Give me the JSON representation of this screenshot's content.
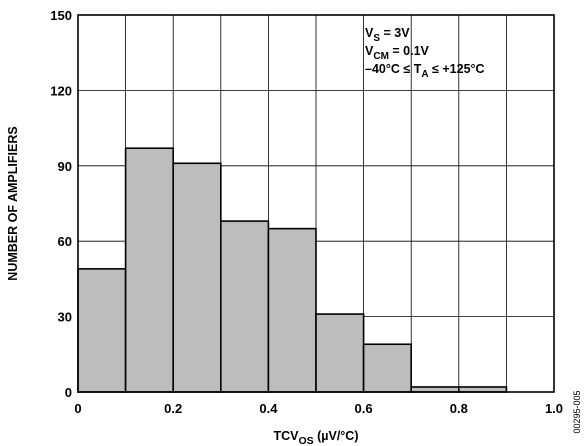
{
  "chart_data": {
    "type": "bar",
    "title": "",
    "xlabel": {
      "main": "TCV",
      "sub": "OS",
      "suffix": " (µV/°C)"
    },
    "ylabel": "NUMBER OF AMPLIFIERS",
    "xlim": [
      0,
      1.0
    ],
    "ylim": [
      0,
      150
    ],
    "x_ticks": [
      0,
      0.2,
      0.4,
      0.6,
      0.8,
      1.0
    ],
    "x_tick_labels": [
      "0",
      "0.2",
      "0.4",
      "0.6",
      "0.8",
      "1.0"
    ],
    "y_ticks": [
      0,
      30,
      60,
      90,
      120,
      150
    ],
    "y_tick_labels": [
      "0",
      "30",
      "60",
      "90",
      "120",
      "150"
    ],
    "grid_x": [
      0,
      0.1,
      0.2,
      0.3,
      0.4,
      0.5,
      0.6,
      0.7,
      0.8,
      0.9,
      1.0
    ],
    "grid_y": [
      0,
      30,
      60,
      90,
      120,
      150
    ],
    "grid": true,
    "legend": "none",
    "bins": [
      {
        "start": 0.0,
        "end": 0.1,
        "value": 49
      },
      {
        "start": 0.1,
        "end": 0.2,
        "value": 97
      },
      {
        "start": 0.2,
        "end": 0.3,
        "value": 91
      },
      {
        "start": 0.3,
        "end": 0.4,
        "value": 68
      },
      {
        "start": 0.4,
        "end": 0.5,
        "value": 65
      },
      {
        "start": 0.5,
        "end": 0.6,
        "value": 31
      },
      {
        "start": 0.6,
        "end": 0.7,
        "value": 19
      },
      {
        "start": 0.7,
        "end": 0.8,
        "value": 2
      },
      {
        "start": 0.8,
        "end": 0.9,
        "value": 2
      }
    ],
    "annotations": [
      {
        "segments": [
          {
            "t": "V"
          },
          {
            "t": "S",
            "sub": true
          },
          {
            "t": " = 3V"
          }
        ]
      },
      {
        "segments": [
          {
            "t": "V"
          },
          {
            "t": "CM",
            "sub": true
          },
          {
            "t": " = 0.1V"
          }
        ]
      },
      {
        "segments": [
          {
            "t": "–40°C ≤ T"
          },
          {
            "t": "A",
            "sub": true
          },
          {
            "t": " ≤ +125°C"
          }
        ]
      }
    ],
    "figure_id": "00295-005",
    "colors": {
      "bar_fill": "#bdbdbd",
      "bar_stroke": "#000000",
      "grid": "#000000",
      "frame": "#000000"
    }
  }
}
